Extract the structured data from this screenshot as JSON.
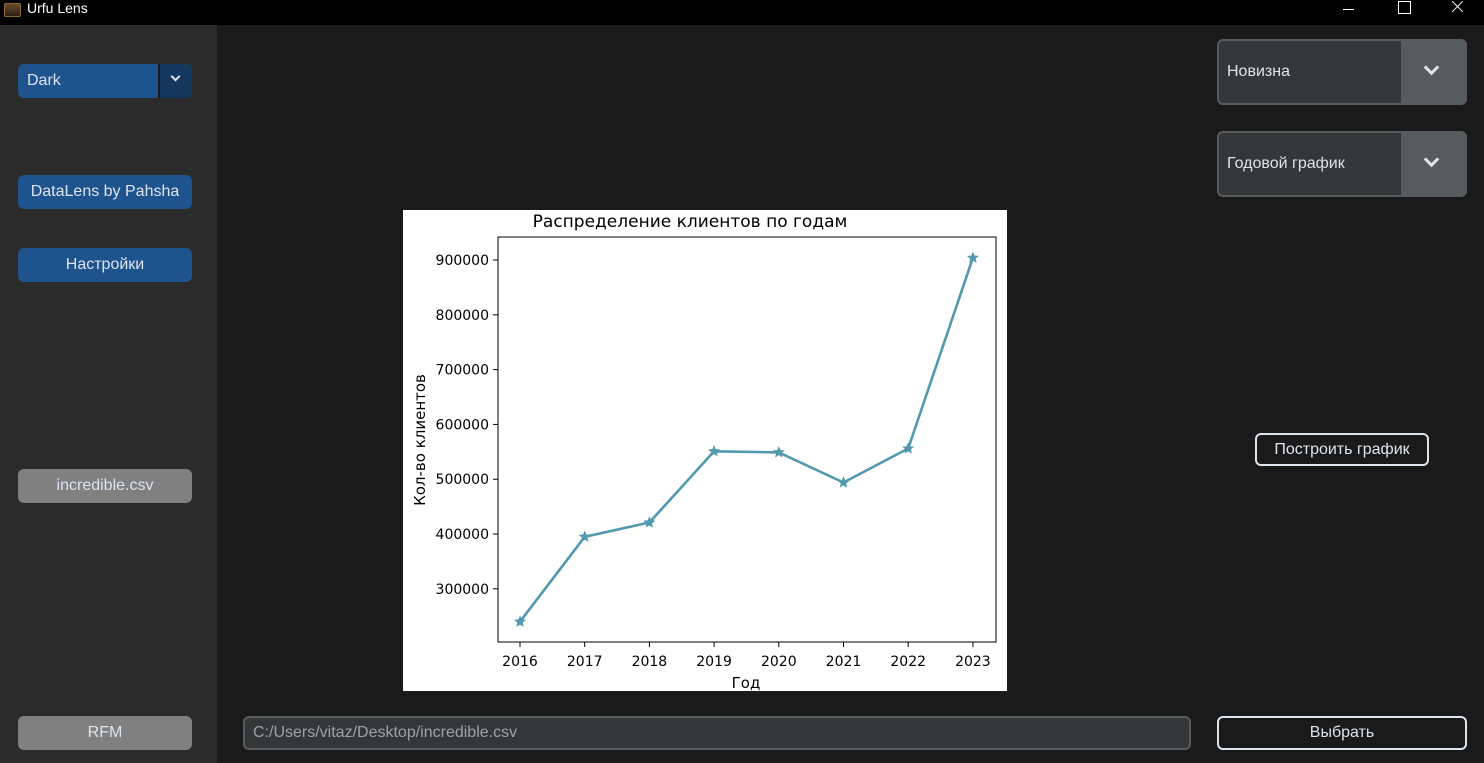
{
  "window": {
    "title": "Urfu Lens"
  },
  "sidebar": {
    "theme_select": {
      "value": "Dark"
    },
    "datalens_button": "DataLens by Pahsha",
    "settings_button": "Настройки",
    "file_button": "incredible.csv",
    "rfm_button": "RFM"
  },
  "controls": {
    "metric_select": {
      "value": "Новизна"
    },
    "chart_type_select": {
      "value": "Годовой график"
    },
    "build_button": "Построить график",
    "choose_button": "Выбрать",
    "path_input": {
      "value": "C:/Users/vitaz/Desktop/incredible.csv"
    }
  },
  "colors": {
    "accent": "#1f538d",
    "line": "#5299b0",
    "background": "#1a1a1a",
    "sidebar": "#2b2b2b"
  },
  "chart_data": {
    "type": "line",
    "title": "Распределение клиентов по годам",
    "xlabel": "Год",
    "ylabel": "Кол-во клиентов",
    "x": [
      "2016",
      "2017",
      "2018",
      "2019",
      "2020",
      "2021",
      "2022",
      "2023"
    ],
    "series": [
      {
        "values": [
          240000,
          395000,
          421000,
          551000,
          549000,
          494000,
          556000,
          904000
        ]
      }
    ],
    "marker": "star",
    "yticks": [
      300000,
      400000,
      500000,
      600000,
      700000,
      800000,
      900000
    ],
    "ylim": [
      203000,
      942000
    ],
    "grid": false
  }
}
